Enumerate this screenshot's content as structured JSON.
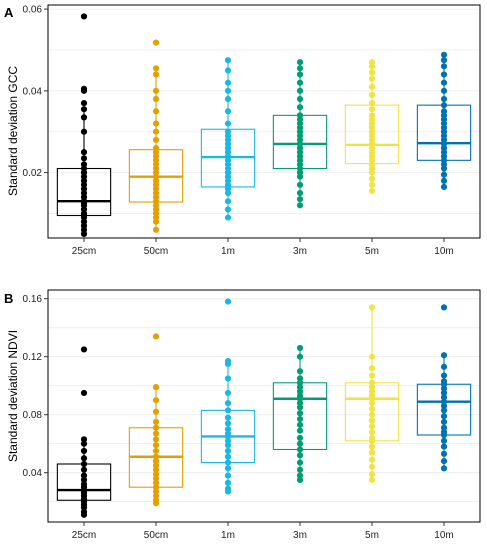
{
  "chart_data": [
    {
      "type": "box",
      "panel_label": "A",
      "ylabel": "Standard deviation GCC",
      "ylim": [
        0.004,
        0.061
      ],
      "yticks": [
        0.02,
        0.04,
        0.06
      ],
      "ytick_labels": [
        "0.02",
        "0.04",
        "0.06"
      ],
      "grid": true,
      "categories": [
        "25cm",
        "50cm",
        "1m",
        "3m",
        "5m",
        "10m"
      ],
      "colors": [
        "#000000",
        "#E69F00",
        "#1AB8E6",
        "#009E73",
        "#F0E442",
        "#0072B2"
      ],
      "boxes": [
        {
          "q1": 0.0095,
          "median": 0.013,
          "q3": 0.021,
          "whisker_low": 0.005,
          "whisker_high": 0.036
        },
        {
          "q1": 0.0128,
          "median": 0.019,
          "q3": 0.0256,
          "whisker_low": 0.006,
          "whisker_high": 0.045
        },
        {
          "q1": 0.0165,
          "median": 0.0238,
          "q3": 0.0306,
          "whisker_low": 0.009,
          "whisker_high": 0.0475
        },
        {
          "q1": 0.021,
          "median": 0.027,
          "q3": 0.034,
          "whisker_low": 0.012,
          "whisker_high": 0.047
        },
        {
          "q1": 0.0222,
          "median": 0.0268,
          "q3": 0.0365,
          "whisker_low": 0.0155,
          "whisker_high": 0.047
        },
        {
          "q1": 0.023,
          "median": 0.0272,
          "q3": 0.0365,
          "whisker_low": 0.0165,
          "whisker_high": 0.0488
        }
      ],
      "points": [
        [
          0.0582,
          0.0405,
          0.04,
          0.037,
          0.0355,
          0.0335,
          0.03,
          0.025,
          0.0235,
          0.022,
          0.021,
          0.02,
          0.019,
          0.018,
          0.017,
          0.016,
          0.015,
          0.014,
          0.013,
          0.0125,
          0.012,
          0.011,
          0.01,
          0.0095,
          0.009,
          0.008,
          0.007,
          0.006,
          0.005
        ],
        [
          0.0518,
          0.0455,
          0.044,
          0.04,
          0.038,
          0.035,
          0.032,
          0.03,
          0.028,
          0.026,
          0.025,
          0.024,
          0.023,
          0.022,
          0.021,
          0.02,
          0.019,
          0.018,
          0.017,
          0.016,
          0.015,
          0.014,
          0.013,
          0.012,
          0.011,
          0.01,
          0.009,
          0.008,
          0.006
        ],
        [
          0.0475,
          0.045,
          0.042,
          0.04,
          0.038,
          0.035,
          0.032,
          0.03,
          0.029,
          0.028,
          0.027,
          0.026,
          0.025,
          0.024,
          0.023,
          0.022,
          0.021,
          0.02,
          0.019,
          0.018,
          0.017,
          0.016,
          0.015,
          0.013,
          0.011,
          0.009
        ],
        [
          0.047,
          0.0455,
          0.044,
          0.042,
          0.04,
          0.038,
          0.036,
          0.034,
          0.033,
          0.032,
          0.031,
          0.03,
          0.029,
          0.028,
          0.027,
          0.026,
          0.025,
          0.024,
          0.023,
          0.022,
          0.021,
          0.02,
          0.019,
          0.017,
          0.015,
          0.0135,
          0.012
        ],
        [
          0.047,
          0.046,
          0.0445,
          0.043,
          0.041,
          0.039,
          0.037,
          0.0355,
          0.034,
          0.033,
          0.032,
          0.031,
          0.03,
          0.029,
          0.028,
          0.027,
          0.026,
          0.025,
          0.024,
          0.023,
          0.022,
          0.021,
          0.02,
          0.0185,
          0.017,
          0.0155
        ],
        [
          0.0488,
          0.0475,
          0.046,
          0.044,
          0.042,
          0.04,
          0.038,
          0.0365,
          0.035,
          0.034,
          0.033,
          0.032,
          0.031,
          0.03,
          0.029,
          0.028,
          0.027,
          0.026,
          0.025,
          0.024,
          0.023,
          0.022,
          0.021,
          0.0195,
          0.018,
          0.0165
        ]
      ]
    },
    {
      "type": "box",
      "panel_label": "B",
      "ylabel": "Standard deviation NDVI",
      "ylim": [
        0.006,
        0.166
      ],
      "yticks": [
        0.04,
        0.08,
        0.12,
        0.16
      ],
      "ytick_labels": [
        "0.04",
        "0.08",
        "0.12",
        "0.16"
      ],
      "grid": true,
      "categories": [
        "25cm",
        "50cm",
        "1m",
        "3m",
        "5m",
        "10m"
      ],
      "colors": [
        "#000000",
        "#E69F00",
        "#1AB8E6",
        "#009E73",
        "#F0E442",
        "#0072B2"
      ],
      "boxes": [
        {
          "q1": 0.021,
          "median": 0.028,
          "q3": 0.046,
          "whisker_low": 0.011,
          "whisker_high": 0.063
        },
        {
          "q1": 0.03,
          "median": 0.051,
          "q3": 0.071,
          "whisker_low": 0.019,
          "whisker_high": 0.099
        },
        {
          "q1": 0.047,
          "median": 0.065,
          "q3": 0.083,
          "whisker_low": 0.027,
          "whisker_high": 0.117
        },
        {
          "q1": 0.056,
          "median": 0.091,
          "q3": 0.102,
          "whisker_low": 0.035,
          "whisker_high": 0.126
        },
        {
          "q1": 0.062,
          "median": 0.091,
          "q3": 0.102,
          "whisker_low": 0.035,
          "whisker_high": 0.154
        },
        {
          "q1": 0.066,
          "median": 0.089,
          "q3": 0.101,
          "whisker_low": 0.043,
          "whisker_high": 0.121
        }
      ],
      "points": [
        [
          0.125,
          0.095,
          0.063,
          0.06,
          0.055,
          0.05,
          0.046,
          0.042,
          0.038,
          0.035,
          0.032,
          0.03,
          0.028,
          0.026,
          0.024,
          0.022,
          0.02,
          0.018,
          0.016,
          0.013,
          0.011
        ],
        [
          0.134,
          0.099,
          0.09,
          0.082,
          0.075,
          0.071,
          0.067,
          0.063,
          0.059,
          0.055,
          0.051,
          0.048,
          0.045,
          0.042,
          0.039,
          0.036,
          0.033,
          0.03,
          0.027,
          0.024,
          0.021,
          0.019
        ],
        [
          0.158,
          0.117,
          0.115,
          0.105,
          0.095,
          0.088,
          0.083,
          0.078,
          0.074,
          0.07,
          0.067,
          0.065,
          0.062,
          0.059,
          0.055,
          0.051,
          0.047,
          0.043,
          0.038,
          0.033,
          0.029,
          0.027
        ],
        [
          0.126,
          0.12,
          0.11,
          0.105,
          0.102,
          0.099,
          0.096,
          0.093,
          0.091,
          0.088,
          0.085,
          0.081,
          0.077,
          0.073,
          0.069,
          0.064,
          0.06,
          0.056,
          0.052,
          0.047,
          0.042,
          0.038,
          0.035
        ],
        [
          0.154,
          0.12,
          0.112,
          0.107,
          0.102,
          0.099,
          0.096,
          0.093,
          0.091,
          0.088,
          0.084,
          0.08,
          0.076,
          0.072,
          0.068,
          0.064,
          0.062,
          0.058,
          0.054,
          0.049,
          0.044,
          0.039,
          0.035
        ],
        [
          0.154,
          0.121,
          0.113,
          0.107,
          0.103,
          0.101,
          0.098,
          0.095,
          0.092,
          0.089,
          0.086,
          0.083,
          0.079,
          0.075,
          0.071,
          0.068,
          0.066,
          0.062,
          0.058,
          0.053,
          0.048,
          0.043
        ]
      ]
    }
  ]
}
